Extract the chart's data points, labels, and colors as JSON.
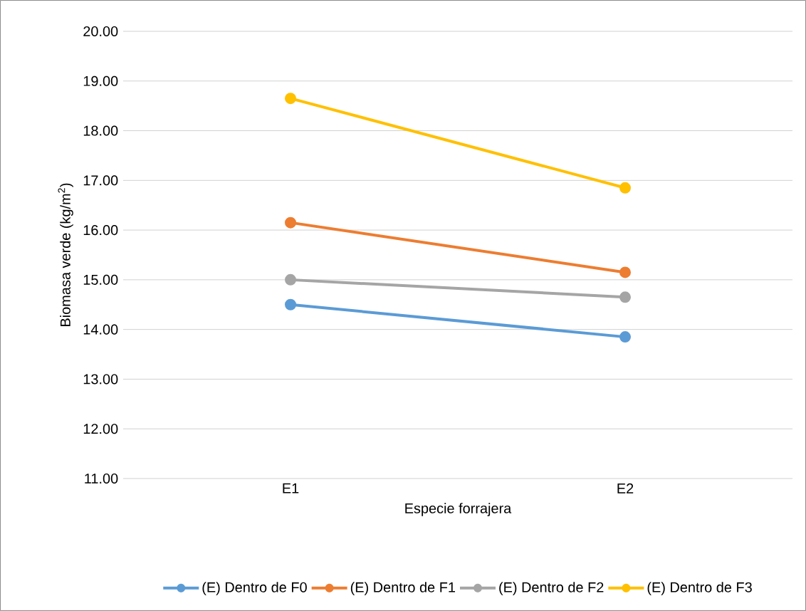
{
  "chart_data": {
    "type": "line",
    "xlabel": "Especie forrajera",
    "ylabel": "Biomasa verde (kg/m$^{2}$)",
    "categories": [
      "E1",
      "E2"
    ],
    "series": [
      {
        "name": "(E) Dentro de F0",
        "color": "#5b9bd5",
        "values": [
          14.5,
          13.85
        ]
      },
      {
        "name": "(E) Dentro de F1",
        "color": "#ed7d31",
        "values": [
          16.15,
          15.15
        ]
      },
      {
        "name": "(E) Dentro de F2",
        "color": "#a5a5a5",
        "values": [
          15.0,
          14.65
        ]
      },
      {
        "name": "(E) Dentro de F3",
        "color": "#ffc000",
        "values": [
          18.65,
          16.85
        ]
      }
    ],
    "ylim": [
      11,
      20
    ],
    "yticks": [
      {
        "value": 11,
        "label": "11.00"
      },
      {
        "value": 12,
        "label": "12.00"
      },
      {
        "value": 13,
        "label": "13.00"
      },
      {
        "value": 14,
        "label": "14.00"
      },
      {
        "value": 15,
        "label": "15.00"
      },
      {
        "value": 16,
        "label": "16.00"
      },
      {
        "value": 17,
        "label": "17.00"
      },
      {
        "value": 18,
        "label": "18.00"
      },
      {
        "value": 19,
        "label": "19.00"
      },
      {
        "value": 20,
        "label": "20.00"
      }
    ],
    "grid": "y",
    "legend": "bottom",
    "marker": "circle",
    "line_style": "solid"
  }
}
